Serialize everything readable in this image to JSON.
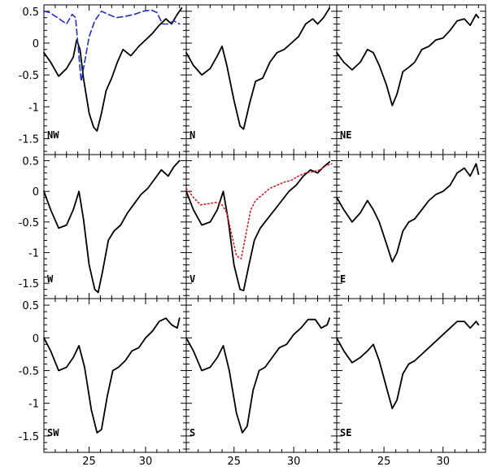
{
  "chart_data": {
    "type": "line",
    "layout": "3x3 grid of panels sharing axes",
    "xlim": [
      21,
      33.6
    ],
    "ylim": [
      -1.75,
      0.6
    ],
    "x_ticks": [
      25,
      30
    ],
    "x_tick_labels": [
      "25",
      "30"
    ],
    "y_ticks": [
      0.5,
      0,
      -0.5,
      -1,
      -1.5
    ],
    "y_tick_labels": [
      "0.5",
      "0",
      "-0.5",
      "-1",
      "-1.5"
    ],
    "grid": false,
    "colors": {
      "main": "#000000",
      "dashed": "#1f2fbf",
      "dotted": "#d81b1b"
    },
    "panels": [
      {
        "label": "NW",
        "series": [
          {
            "style": "solid",
            "color": "#000000",
            "x": [
              21.0,
              21.6,
              22.3,
              23.0,
              23.6,
              23.9,
              24.2,
              24.5,
              25.0,
              25.4,
              25.7,
              26.1,
              26.5,
              27.0,
              27.5,
              28.0,
              28.7,
              29.4,
              30.0,
              30.6,
              31.2,
              31.8,
              32.3,
              32.8,
              33.2
            ],
            "y": [
              -0.15,
              -0.3,
              -0.52,
              -0.4,
              -0.22,
              0.05,
              -0.1,
              -0.55,
              -1.1,
              -1.32,
              -1.38,
              -1.1,
              -0.75,
              -0.55,
              -0.3,
              -0.1,
              -0.2,
              -0.05,
              0.05,
              0.15,
              0.28,
              0.38,
              0.3,
              0.45,
              0.55
            ]
          },
          {
            "style": "dashed",
            "color": "#1f2fbf",
            "x": [
              21.0,
              21.5,
              22.2,
              23.0,
              23.5,
              23.8,
              24.0,
              24.3,
              24.6,
              25.0,
              25.5,
              26.1,
              26.7,
              27.4,
              28.2,
              29.0,
              29.8,
              30.5,
              31.0,
              31.5,
              32.0,
              32.5,
              33.0
            ],
            "y": [
              0.5,
              0.48,
              0.4,
              0.3,
              0.45,
              0.4,
              0.0,
              -0.6,
              -0.3,
              0.1,
              0.35,
              0.5,
              0.45,
              0.4,
              0.42,
              0.45,
              0.5,
              0.52,
              0.48,
              0.3,
              0.3,
              0.35,
              0.3
            ]
          }
        ]
      },
      {
        "label": "N",
        "series": [
          {
            "style": "solid",
            "color": "#000000",
            "x": [
              21.0,
              21.6,
              22.3,
              23.0,
              23.6,
              24.0,
              24.4,
              25.0,
              25.5,
              25.8,
              26.3,
              26.8,
              27.4,
              28.0,
              28.6,
              29.2,
              29.8,
              30.4,
              31.0,
              31.6,
              32.0,
              32.5,
              33.0
            ],
            "y": [
              -0.15,
              -0.35,
              -0.5,
              -0.4,
              -0.2,
              -0.05,
              -0.35,
              -0.9,
              -1.3,
              -1.35,
              -0.95,
              -0.6,
              -0.55,
              -0.3,
              -0.15,
              -0.1,
              0.0,
              0.1,
              0.3,
              0.38,
              0.3,
              0.4,
              0.55
            ]
          }
        ]
      },
      {
        "label": "NE",
        "series": [
          {
            "style": "solid",
            "color": "#000000",
            "x": [
              21.0,
              21.6,
              22.3,
              23.0,
              23.6,
              24.1,
              24.6,
              25.2,
              25.7,
              26.1,
              26.6,
              27.1,
              27.6,
              28.2,
              28.8,
              29.4,
              30.0,
              30.6,
              31.2,
              31.8,
              32.3,
              32.8,
              33.0
            ],
            "y": [
              -0.15,
              -0.3,
              -0.42,
              -0.3,
              -0.1,
              -0.15,
              -0.35,
              -0.65,
              -0.98,
              -0.8,
              -0.45,
              -0.38,
              -0.3,
              -0.1,
              -0.05,
              0.05,
              0.08,
              0.2,
              0.35,
              0.38,
              0.28,
              0.45,
              0.4
            ]
          }
        ]
      },
      {
        "label": "W",
        "series": [
          {
            "style": "solid",
            "color": "#000000",
            "x": [
              21.0,
              21.6,
              22.3,
              23.0,
              23.6,
              24.1,
              24.5,
              25.0,
              25.5,
              25.8,
              26.2,
              26.7,
              27.2,
              27.8,
              28.4,
              29.0,
              29.6,
              30.2,
              30.8,
              31.4,
              32.0,
              32.5,
              33.0
            ],
            "y": [
              0.0,
              -0.3,
              -0.6,
              -0.55,
              -0.3,
              0.0,
              -0.45,
              -1.2,
              -1.6,
              -1.65,
              -1.3,
              -0.8,
              -0.65,
              -0.55,
              -0.35,
              -0.2,
              -0.05,
              0.05,
              0.2,
              0.35,
              0.25,
              0.4,
              0.5
            ]
          }
        ]
      },
      {
        "label": "V",
        "series": [
          {
            "style": "solid",
            "color": "#000000",
            "x": [
              21.0,
              21.6,
              22.3,
              23.0,
              23.6,
              24.1,
              24.5,
              25.0,
              25.5,
              25.8,
              26.2,
              26.7,
              27.2,
              27.8,
              28.4,
              29.0,
              29.6,
              30.2,
              30.8,
              31.4,
              32.0,
              32.5,
              33.0
            ],
            "y": [
              0.0,
              -0.3,
              -0.55,
              -0.5,
              -0.3,
              0.0,
              -0.45,
              -1.2,
              -1.6,
              -1.62,
              -1.25,
              -0.8,
              -0.6,
              -0.45,
              -0.3,
              -0.15,
              0.0,
              0.1,
              0.25,
              0.35,
              0.3,
              0.4,
              0.48
            ]
          },
          {
            "style": "dotted",
            "color": "#d81b1b",
            "x": [
              21.0,
              21.6,
              22.2,
              22.9,
              23.5,
              24.0,
              24.4,
              24.8,
              25.2,
              25.6,
              26.0,
              26.4,
              26.8,
              27.4,
              28.0,
              28.6,
              29.2,
              29.8,
              30.4,
              31.0,
              31.6,
              32.2,
              32.7,
              33.2
            ],
            "y": [
              0.05,
              -0.1,
              -0.22,
              -0.2,
              -0.18,
              -0.22,
              -0.35,
              -0.7,
              -1.05,
              -1.1,
              -0.7,
              -0.3,
              -0.15,
              -0.05,
              0.05,
              0.1,
              0.15,
              0.18,
              0.25,
              0.3,
              0.32,
              0.35,
              0.42,
              0.45
            ]
          }
        ]
      },
      {
        "label": "E",
        "series": [
          {
            "style": "solid",
            "color": "#000000",
            "x": [
              21.0,
              21.6,
              22.3,
              23.0,
              23.6,
              24.1,
              24.6,
              25.2,
              25.7,
              26.1,
              26.6,
              27.1,
              27.6,
              28.2,
              28.8,
              29.4,
              30.0,
              30.6,
              31.2,
              31.8,
              32.3,
              32.8,
              33.0
            ],
            "y": [
              -0.1,
              -0.3,
              -0.5,
              -0.35,
              -0.15,
              -0.3,
              -0.5,
              -0.85,
              -1.15,
              -1.0,
              -0.65,
              -0.5,
              -0.45,
              -0.3,
              -0.15,
              -0.05,
              0.0,
              0.1,
              0.3,
              0.38,
              0.25,
              0.45,
              0.28
            ]
          }
        ]
      },
      {
        "label": "SW",
        "series": [
          {
            "style": "solid",
            "color": "#000000",
            "x": [
              21.0,
              21.6,
              22.3,
              23.0,
              23.6,
              24.1,
              24.6,
              25.2,
              25.7,
              26.1,
              26.6,
              27.1,
              27.6,
              28.2,
              28.8,
              29.4,
              30.0,
              30.6,
              31.2,
              31.8,
              32.3,
              32.8,
              33.0
            ],
            "y": [
              0.0,
              -0.2,
              -0.5,
              -0.45,
              -0.3,
              -0.12,
              -0.45,
              -1.1,
              -1.45,
              -1.4,
              -0.9,
              -0.5,
              -0.45,
              -0.35,
              -0.2,
              -0.15,
              0.0,
              0.1,
              0.25,
              0.3,
              0.2,
              0.15,
              0.3
            ]
          }
        ]
      },
      {
        "label": "S",
        "series": [
          {
            "style": "solid",
            "color": "#000000",
            "x": [
              21.0,
              21.6,
              22.3,
              23.0,
              23.6,
              24.1,
              24.6,
              25.2,
              25.7,
              26.1,
              26.6,
              27.1,
              27.6,
              28.2,
              28.8,
              29.4,
              30.0,
              30.6,
              31.2,
              31.8,
              32.3,
              32.8,
              33.0
            ],
            "y": [
              0.0,
              -0.2,
              -0.5,
              -0.45,
              -0.3,
              -0.12,
              -0.5,
              -1.15,
              -1.45,
              -1.35,
              -0.8,
              -0.5,
              -0.45,
              -0.3,
              -0.15,
              -0.1,
              0.05,
              0.15,
              0.28,
              0.28,
              0.15,
              0.2,
              0.3
            ]
          }
        ]
      },
      {
        "label": "SE",
        "series": [
          {
            "style": "solid",
            "color": "#000000",
            "x": [
              21.0,
              21.6,
              22.3,
              23.0,
              23.6,
              24.1,
              24.6,
              25.2,
              25.7,
              26.1,
              26.6,
              27.1,
              27.6,
              28.2,
              28.8,
              29.4,
              30.0,
              30.6,
              31.2,
              31.8,
              32.3,
              32.8,
              33.0
            ],
            "y": [
              0.0,
              -0.2,
              -0.38,
              -0.3,
              -0.2,
              -0.1,
              -0.35,
              -0.75,
              -1.08,
              -0.95,
              -0.55,
              -0.4,
              -0.35,
              -0.25,
              -0.15,
              -0.05,
              0.05,
              0.15,
              0.25,
              0.25,
              0.15,
              0.25,
              0.2
            ]
          }
        ]
      }
    ]
  }
}
